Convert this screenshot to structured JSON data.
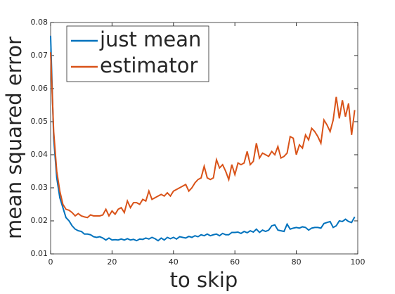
{
  "chart_data": {
    "type": "line",
    "x": [
      0,
      1,
      2,
      3,
      4,
      5,
      6,
      7,
      8,
      9,
      10,
      11,
      12,
      13,
      14,
      15,
      16,
      17,
      18,
      19,
      20,
      21,
      22,
      23,
      24,
      25,
      26,
      27,
      28,
      29,
      30,
      31,
      32,
      33,
      34,
      35,
      36,
      37,
      38,
      39,
      40,
      41,
      42,
      43,
      44,
      45,
      46,
      47,
      48,
      49,
      50,
      51,
      52,
      53,
      54,
      55,
      56,
      57,
      58,
      59,
      60,
      61,
      62,
      63,
      64,
      65,
      66,
      67,
      68,
      69,
      70,
      71,
      72,
      73,
      74,
      75,
      76,
      77,
      78,
      79,
      80,
      81,
      82,
      83,
      84,
      85,
      86,
      87,
      88,
      89,
      90,
      91,
      92,
      93,
      94,
      95,
      96,
      97,
      98,
      99
    ],
    "series": [
      {
        "name": "just mean",
        "color": "#0072bd",
        "values": [
          0.076,
          0.045,
          0.033,
          0.027,
          0.024,
          0.021,
          0.02,
          0.0185,
          0.0175,
          0.017,
          0.0168,
          0.016,
          0.016,
          0.0158,
          0.0152,
          0.015,
          0.0152,
          0.0148,
          0.0142,
          0.0148,
          0.0142,
          0.0143,
          0.0142,
          0.0145,
          0.0142,
          0.0146,
          0.0142,
          0.0144,
          0.014,
          0.0145,
          0.0144,
          0.0148,
          0.0145,
          0.015,
          0.0146,
          0.014,
          0.0148,
          0.0142,
          0.015,
          0.0146,
          0.015,
          0.0145,
          0.0152,
          0.015,
          0.0148,
          0.0153,
          0.015,
          0.0155,
          0.0152,
          0.0158,
          0.0155,
          0.016,
          0.0155,
          0.0158,
          0.016,
          0.0155,
          0.0162,
          0.0158,
          0.0158,
          0.0165,
          0.0165,
          0.0166,
          0.0162,
          0.0168,
          0.0164,
          0.017,
          0.0166,
          0.0175,
          0.0165,
          0.0172,
          0.0168,
          0.0172,
          0.0185,
          0.0188,
          0.0172,
          0.017,
          0.0168,
          0.019,
          0.0175,
          0.0178,
          0.018,
          0.0178,
          0.0182,
          0.018,
          0.0172,
          0.0178,
          0.018,
          0.018,
          0.0178,
          0.0192,
          0.0195,
          0.0198,
          0.018,
          0.0185,
          0.02,
          0.0198,
          0.0205,
          0.0198,
          0.0195,
          0.0212
        ]
      },
      {
        "name": "estimator",
        "color": "#d95319",
        "values": [
          0.071,
          0.047,
          0.035,
          0.029,
          0.025,
          0.0235,
          0.0232,
          0.0225,
          0.0215,
          0.0222,
          0.0215,
          0.0212,
          0.021,
          0.0218,
          0.0215,
          0.0215,
          0.0215,
          0.0218,
          0.0235,
          0.0215,
          0.023,
          0.022,
          0.0235,
          0.024,
          0.0225,
          0.026,
          0.024,
          0.0255,
          0.0255,
          0.025,
          0.0265,
          0.026,
          0.029,
          0.0265,
          0.027,
          0.0275,
          0.028,
          0.0275,
          0.0285,
          0.0275,
          0.029,
          0.0295,
          0.03,
          0.0305,
          0.031,
          0.029,
          0.03,
          0.0315,
          0.0325,
          0.033,
          0.0365,
          0.033,
          0.0325,
          0.033,
          0.0385,
          0.036,
          0.037,
          0.035,
          0.0325,
          0.037,
          0.034,
          0.0375,
          0.037,
          0.0375,
          0.041,
          0.037,
          0.038,
          0.0435,
          0.039,
          0.0405,
          0.04,
          0.0395,
          0.041,
          0.04,
          0.0425,
          0.039,
          0.0395,
          0.0405,
          0.0455,
          0.045,
          0.04,
          0.043,
          0.042,
          0.046,
          0.0445,
          0.048,
          0.047,
          0.0455,
          0.0435,
          0.0505,
          0.049,
          0.047,
          0.0505,
          0.0575,
          0.051,
          0.0565,
          0.0515,
          0.0555,
          0.046,
          0.0535
        ]
      }
    ],
    "xlabel": "to skip",
    "ylabel": "mean squared error",
    "xlim": [
      0,
      100
    ],
    "xticks": [
      0,
      20,
      40,
      60,
      80,
      100
    ],
    "ylim": [
      0.01,
      0.08
    ],
    "yticks": [
      0.01,
      0.02,
      0.03,
      0.04,
      0.05,
      0.06,
      0.07,
      0.08
    ],
    "legend": "upper left"
  }
}
